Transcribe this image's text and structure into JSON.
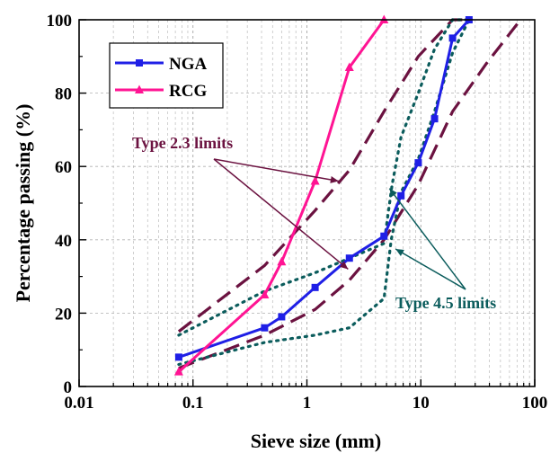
{
  "chart_data": {
    "type": "line",
    "x_scale": "log",
    "xlabel": "Sieve size (mm)",
    "ylabel": "Percentage passing (%)",
    "xlim": [
      0.01,
      100
    ],
    "ylim": [
      0,
      100
    ],
    "x_ticks": [
      0.01,
      0.1,
      1,
      10,
      100
    ],
    "x_tick_labels": [
      "0.01",
      "0.1",
      "1",
      "10",
      "100"
    ],
    "y_ticks": [
      0,
      20,
      40,
      60,
      80,
      100
    ],
    "y_tick_labels": [
      "0",
      "20",
      "40",
      "60",
      "80",
      "100"
    ],
    "grid": true,
    "legend_position": "top-left",
    "series": [
      {
        "name": "NGA",
        "color": "#1f1fe6",
        "marker": "square",
        "x": [
          0.075,
          0.425,
          0.6,
          1.18,
          2.36,
          4.75,
          6.7,
          9.5,
          13.2,
          19,
          26.5
        ],
        "y": [
          8,
          16,
          19,
          27,
          35,
          41,
          52,
          61,
          73,
          95,
          100
        ]
      },
      {
        "name": "RCG",
        "color": "#ff1493",
        "marker": "triangle",
        "x": [
          0.075,
          0.425,
          0.6,
          1.18,
          2.36,
          4.75
        ],
        "y": [
          4,
          25,
          34,
          56,
          87,
          100
        ]
      }
    ],
    "limit_curves": [
      {
        "group": "Type 2.3 limits",
        "color": "#6b1240",
        "style": "dashed",
        "bound": "lower",
        "x": [
          0.075,
          0.425,
          1.18,
          2.36,
          4.75,
          9.5,
          19,
          37.5,
          75
        ],
        "y": [
          5,
          14,
          21,
          29,
          40,
          55,
          75,
          88,
          100
        ]
      },
      {
        "group": "Type 2.3 limits",
        "color": "#6b1240",
        "style": "dashed",
        "bound": "upper",
        "x": [
          0.075,
          0.425,
          1.18,
          2.36,
          4.75,
          9.5,
          19,
          26.5
        ],
        "y": [
          15,
          33,
          48,
          59,
          75,
          90,
          100,
          100
        ]
      },
      {
        "group": "Type 4.5 limits",
        "color": "#0b5c5c",
        "style": "dotted",
        "bound": "lower",
        "x": [
          0.075,
          0.425,
          1.18,
          2.36,
          4.75,
          5.5,
          6.7,
          9.5,
          13.2,
          19,
          26.5
        ],
        "y": [
          6,
          12,
          14,
          16,
          24,
          40,
          53,
          62,
          75,
          91,
          100
        ]
      },
      {
        "group": "Type 4.5 limits",
        "color": "#0b5c5c",
        "style": "dotted",
        "bound": "upper",
        "x": [
          0.075,
          0.425,
          1.18,
          2.36,
          4.75,
          5.6,
          6.7,
          9.5,
          13.2,
          19,
          26.5
        ],
        "y": [
          14,
          26,
          31,
          35,
          39,
          55,
          68,
          80,
          92,
          100,
          100
        ]
      }
    ],
    "annotations": [
      {
        "text": "Type 2.3 limits",
        "color": "#6b1240",
        "arrows_to": [
          [
            1.9,
            56
          ],
          [
            2.3,
            32
          ]
        ]
      },
      {
        "text": "Type 4.5 limits",
        "color": "#0b5c5c",
        "arrows_to": [
          [
            5.3,
            54
          ],
          [
            6.0,
            37.5
          ]
        ]
      }
    ]
  }
}
